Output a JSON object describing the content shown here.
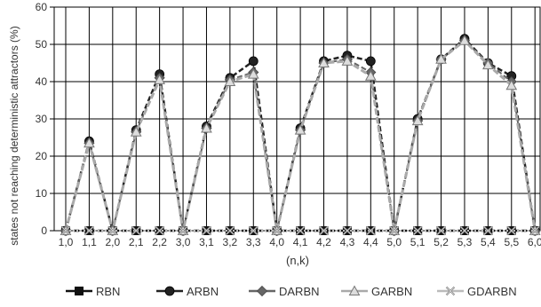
{
  "chart_data": {
    "type": "line",
    "xlabel": "(n,k)",
    "ylabel": "states not reaching deterministic attractors (%)",
    "ylim": [
      0,
      60
    ],
    "yticks": [
      0,
      10,
      20,
      30,
      40,
      50,
      60
    ],
    "grid": true,
    "legend_position": "bottom",
    "categories": [
      "1,0",
      "1,1",
      "2,0",
      "2,1",
      "2,2",
      "3,0",
      "3,1",
      "3,2",
      "3,3",
      "4,0",
      "4,1",
      "4,2",
      "4,3",
      "4,4",
      "5,0",
      "5,1",
      "5,2",
      "5,3",
      "5,4",
      "5,5",
      "6,0"
    ],
    "series": [
      {
        "name": "RBN",
        "color": "#111111",
        "marker": "square",
        "values": [
          0,
          0,
          0,
          0,
          0,
          0,
          0,
          0,
          0,
          0,
          0,
          0,
          0,
          0,
          0,
          0,
          0,
          0,
          0,
          0,
          0
        ]
      },
      {
        "name": "ARBN",
        "color": "#222222",
        "marker": "circle",
        "values": [
          0,
          24,
          0,
          27,
          42,
          0,
          28,
          41,
          45.5,
          0,
          27.5,
          45.5,
          47,
          45.5,
          0,
          30,
          46,
          51.5,
          45,
          41.5,
          0
        ]
      },
      {
        "name": "DARBN",
        "color": "#666666",
        "marker": "diamond",
        "values": [
          0,
          23.5,
          0,
          26.5,
          41,
          0,
          27.5,
          40.5,
          42.5,
          0,
          27,
          45,
          46,
          42.5,
          0,
          29.5,
          46,
          51,
          45,
          40,
          0
        ]
      },
      {
        "name": "GARBN",
        "color": "#aaaaaa",
        "marker": "triangle",
        "values": [
          0,
          23.5,
          0,
          26.5,
          40.5,
          0,
          27.5,
          40,
          42,
          0,
          27,
          45,
          45.5,
          41.5,
          0,
          29.5,
          46,
          51,
          44.5,
          39,
          0
        ]
      },
      {
        "name": "GDARBN",
        "color": "#bbbbbb",
        "marker": "x",
        "values": [
          0,
          0,
          0,
          0,
          0,
          0,
          0,
          0,
          0,
          0,
          0,
          0,
          0,
          0,
          0,
          0,
          0,
          0,
          0,
          0,
          0
        ]
      }
    ]
  }
}
